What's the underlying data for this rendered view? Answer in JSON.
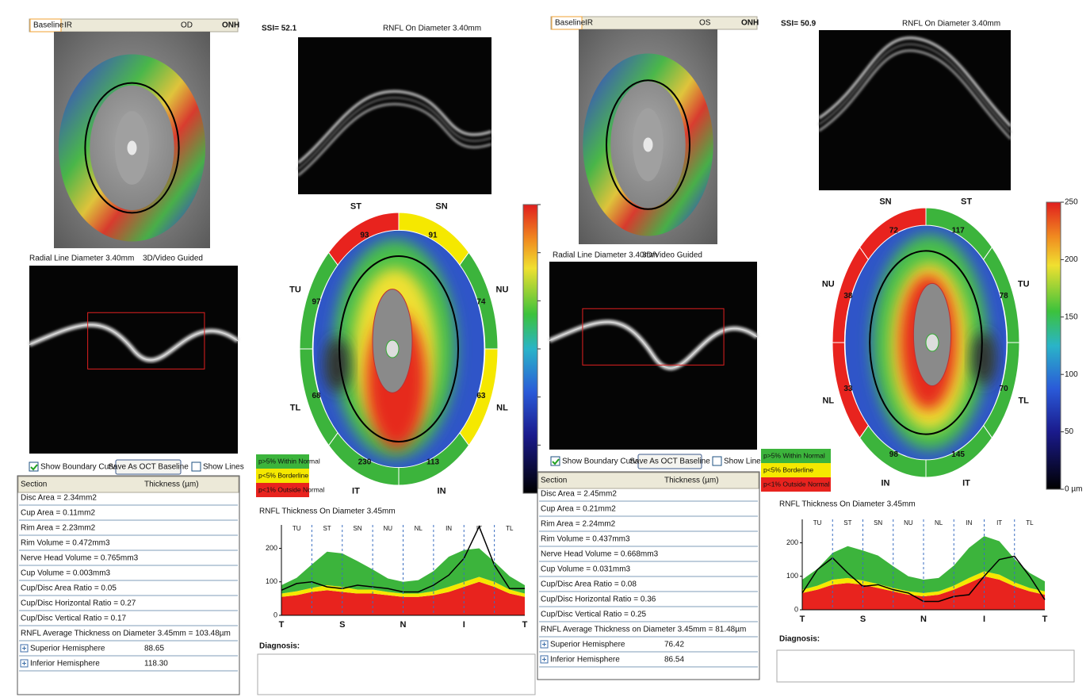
{
  "panels": [
    {
      "tabs": [
        "Baseline",
        "IR"
      ],
      "eye": "OD",
      "view": "ONH",
      "ssi": "SSI= 52.1",
      "scan_title": "RNFL On Diameter 3.40mm",
      "radial_title": "Radial Line Diameter 3.40mm",
      "guided": "3D/Video Guided",
      "show_boundary": "Show Boundary Curves",
      "save_button": "Save As OCT Baseline",
      "show_lines": "Show Lines",
      "table": {
        "header": [
          "Section",
          "Thickness (µm)"
        ],
        "rows": [
          [
            "Disc Area = 2.34mm2"
          ],
          [
            "Cup Area = 0.11mm2"
          ],
          [
            "Rim Area = 2.23mm2"
          ],
          [
            "Rim Volume = 0.472mm3"
          ],
          [
            "Nerve Head Volume = 0.765mm3"
          ],
          [
            "Cup Volume = 0.003mm3"
          ],
          [
            "Cup/Disc Area Ratio = 0.05"
          ],
          [
            "Cup/Disc Horizontal Ratio = 0.27"
          ],
          [
            "Cup/Disc Vertical Ratio = 0.17"
          ],
          [
            "RNFL Average Thickness on Diameter 3.45mm = 103.48µm"
          ],
          [
            "Superior Hemisphere",
            "88.65"
          ],
          [
            "Inferior Hemisphere",
            "118.30"
          ]
        ]
      },
      "sectors": [
        {
          "label": "SN",
          "value": 91,
          "color": "#f5e800"
        },
        {
          "label": "NU",
          "value": 74,
          "color": "#3cb43c"
        },
        {
          "label": "NL",
          "value": 63,
          "color": "#f5e800"
        },
        {
          "label": "IN",
          "value": 113,
          "color": "#3cb43c"
        },
        {
          "label": "IT",
          "value": 230,
          "color": "#3cb43c"
        },
        {
          "label": "TL",
          "value": 68,
          "color": "#3cb43c"
        },
        {
          "label": "TU",
          "value": 97,
          "color": "#3cb43c"
        },
        {
          "label": "ST",
          "value": 93,
          "color": "#e8231e"
        }
      ],
      "diagnosis": "Diagnosis:"
    },
    {
      "tabs": [
        "Baseline",
        "IR"
      ],
      "eye": "OS",
      "view": "ONH",
      "ssi": "SSI= 50.9",
      "scan_title": "RNFL On Diameter 3.40mm",
      "radial_title": "Radial Line Diameter 3.40mm",
      "guided": "3D/Video Guided",
      "show_boundary": "Show Boundary Curves",
      "save_button": "Save As OCT Baseline",
      "show_lines": "Show Lines",
      "table": {
        "header": [
          "Section",
          "Thickness (µm)"
        ],
        "rows": [
          [
            "Disc Area = 2.45mm2"
          ],
          [
            "Cup Area = 0.21mm2"
          ],
          [
            "Rim Area = 2.24mm2"
          ],
          [
            "Rim Volume = 0.437mm3"
          ],
          [
            "Nerve Head Volume = 0.668mm3"
          ],
          [
            "Cup Volume = 0.031mm3"
          ],
          [
            "Cup/Disc Area Ratio = 0.08"
          ],
          [
            "Cup/Disc Horizontal Ratio = 0.36"
          ],
          [
            "Cup/Disc Vertical Ratio = 0.25"
          ],
          [
            "RNFL Average Thickness on Diameter 3.45mm = 81.48µm"
          ],
          [
            "Superior Hemisphere",
            "76.42"
          ],
          [
            "Inferior Hemisphere",
            "86.54"
          ]
        ]
      },
      "sectors": [
        {
          "label": "ST",
          "value": 117,
          "color": "#3cb43c"
        },
        {
          "label": "TU",
          "value": 78,
          "color": "#3cb43c"
        },
        {
          "label": "TL",
          "value": 70,
          "color": "#3cb43c"
        },
        {
          "label": "IT",
          "value": 145,
          "color": "#3cb43c"
        },
        {
          "label": "IN",
          "value": 98,
          "color": "#3cb43c"
        },
        {
          "label": "NL",
          "value": 33,
          "color": "#e8231e"
        },
        {
          "label": "NU",
          "value": 38,
          "color": "#e8231e"
        },
        {
          "label": "SN",
          "value": 72,
          "color": "#e8231e"
        }
      ],
      "colorbar": {
        "lim": [
          0,
          250
        ],
        "ticks": [
          250,
          200,
          150,
          100,
          50,
          {
            "value": 0,
            "label": "0 µm"
          }
        ]
      },
      "diagnosis": "Diagnosis:"
    }
  ],
  "chart_data": [
    {
      "type": "area",
      "title": "RNFL Thickness On Diameter 3.45mm",
      "sector_labels": [
        "TU",
        "ST",
        "SN",
        "NU",
        "NL",
        "IN",
        "IT",
        "TL"
      ],
      "axis_labels": [
        "T",
        "S",
        "N",
        "I",
        "T"
      ],
      "ylim": [
        0,
        270
      ],
      "yticks": [
        0,
        100,
        200
      ],
      "bands": [
        {
          "name": "p<1% Outside Normal",
          "color": "#e8231e",
          "values": [
            55,
            60,
            70,
            75,
            70,
            65,
            65,
            60,
            55,
            55,
            60,
            70,
            85,
            100,
            85,
            65,
            55
          ]
        },
        {
          "name": "p<5% Borderline",
          "color": "#f5e800",
          "values": [
            10,
            12,
            12,
            15,
            15,
            12,
            12,
            10,
            10,
            10,
            12,
            15,
            15,
            15,
            15,
            12,
            10
          ]
        },
        {
          "name": "p>5% Within Normal",
          "color": "#3cb43c",
          "values": [
            25,
            40,
            70,
            100,
            100,
            85,
            60,
            40,
            35,
            40,
            60,
            90,
            95,
            85,
            60,
            40,
            25
          ]
        }
      ],
      "series": [
        {
          "color": "#000000",
          "values": [
            75,
            95,
            100,
            85,
            80,
            90,
            85,
            80,
            70,
            70,
            90,
            120,
            170,
            265,
            150,
            80,
            80
          ]
        }
      ]
    },
    {
      "type": "area",
      "title": "RNFL Thickness On Diameter 3.45mm",
      "sector_labels": [
        "TU",
        "ST",
        "SN",
        "NU",
        "NL",
        "IN",
        "IT",
        "TL"
      ],
      "axis_labels": [
        "T",
        "S",
        "N",
        "I",
        "T"
      ],
      "ylim": [
        0,
        270
      ],
      "yticks": [
        0,
        100,
        200
      ],
      "bands": [
        {
          "name": "p<1% Outside Normal",
          "color": "#e8231e",
          "values": [
            50,
            60,
            75,
            80,
            75,
            65,
            55,
            45,
            40,
            45,
            60,
            80,
            100,
            90,
            70,
            55,
            45
          ]
        },
        {
          "name": "p<5% Borderline",
          "color": "#f5e800",
          "values": [
            10,
            12,
            15,
            15,
            12,
            12,
            10,
            10,
            10,
            10,
            12,
            15,
            15,
            15,
            12,
            10,
            10
          ]
        },
        {
          "name": "p>5% Within Normal",
          "color": "#3cb43c",
          "values": [
            30,
            50,
            80,
            95,
            90,
            85,
            65,
            45,
            40,
            40,
            60,
            90,
            105,
            100,
            70,
            45,
            30
          ]
        }
      ],
      "series": [
        {
          "color": "#000000",
          "values": [
            50,
            120,
            155,
            110,
            70,
            75,
            60,
            50,
            25,
            25,
            40,
            45,
            100,
            150,
            160,
            100,
            30
          ]
        }
      ]
    }
  ]
}
